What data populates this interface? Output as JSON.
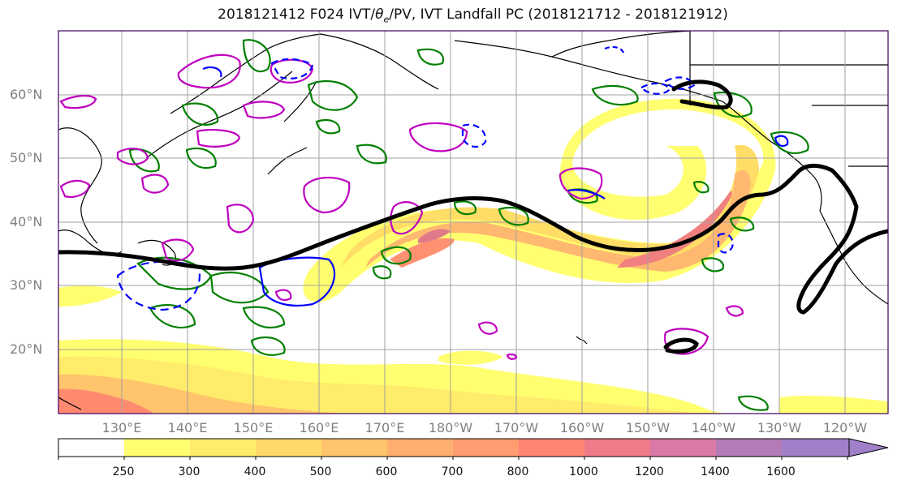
{
  "title": "2018121412 F024 IVT/θe/PV, IVT Landfall PC (2018121712 - 2018121912)",
  "lat_labels": [
    "60°N",
    "50°N",
    "40°N",
    "30°N",
    "20°N"
  ],
  "lon_labels": [
    "130°E",
    "140°E",
    "150°E",
    "160°E",
    "170°E",
    "180°W",
    "170°W",
    "160°W",
    "150°W",
    "140°W",
    "130°W",
    "120°W"
  ],
  "colorbar": {
    "levels": [
      "250",
      "300",
      "400",
      "500",
      "600",
      "700",
      "800",
      "1000",
      "1200",
      "1400",
      "1600"
    ],
    "colors": [
      "#ffffff",
      "#ffff70",
      "#ffec6a",
      "#ffd96a",
      "#ffc46c",
      "#ffb070",
      "#ff9c70",
      "#ff8474",
      "#f07a8a",
      "#d97aa6",
      "#b57ab8",
      "#a080c8"
    ]
  },
  "colors": {
    "theta_e_contour": "#008000",
    "pv_contour_positive": "#0000ff",
    "pv_contour_magenta": "#c000c0",
    "landfall_pc": "#000000",
    "coastline": "#000000",
    "grid": "#a0a0a0"
  }
}
